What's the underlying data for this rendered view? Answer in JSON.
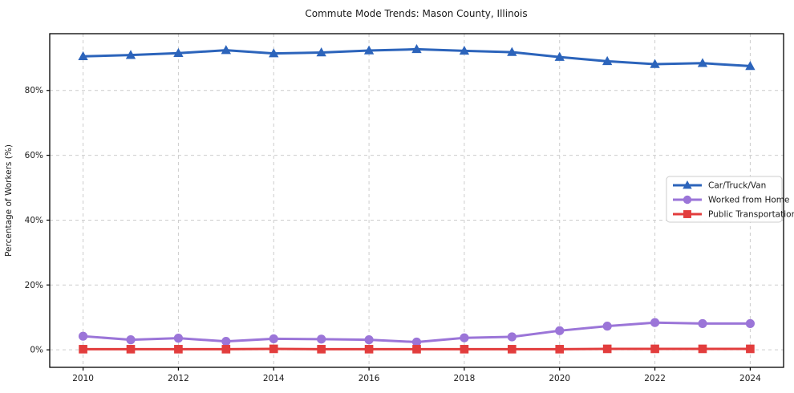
{
  "chart_data": {
    "type": "line",
    "title": "Commute Mode Trends: Mason County, Illinois",
    "xlabel": "",
    "ylabel": "Percentage of Workers (%)",
    "x": [
      2010,
      2011,
      2012,
      2013,
      2014,
      2015,
      2016,
      2017,
      2018,
      2019,
      2020,
      2021,
      2022,
      2023,
      2024
    ],
    "x_ticks": [
      2010,
      2012,
      2014,
      2016,
      2018,
      2020,
      2022,
      2024
    ],
    "y_ticks": [
      0,
      20,
      40,
      60,
      80
    ],
    "y_tick_suffix": "%",
    "xlim": [
      2009.3,
      2024.7
    ],
    "ylim": [
      -5.4,
      97.5
    ],
    "grid": true,
    "grid_style": "dashed",
    "legend_position": "center right",
    "series": [
      {
        "name": "Car/Truck/Van",
        "marker": "triangle",
        "color": "#2c64bb",
        "values": [
          90.5,
          90.9,
          91.5,
          92.4,
          91.4,
          91.7,
          92.3,
          92.7,
          92.2,
          91.8,
          90.3,
          89.0,
          88.1,
          88.4,
          87.5
        ]
      },
      {
        "name": "Worked from Home",
        "marker": "circle",
        "color": "#9b75d8",
        "values": [
          4.2,
          3.1,
          3.6,
          2.6,
          3.4,
          3.3,
          3.1,
          2.4,
          3.7,
          4.0,
          5.9,
          7.3,
          8.4,
          8.1,
          8.1
        ]
      },
      {
        "name": "Public Transportation",
        "marker": "square",
        "color": "#e23d3d",
        "values": [
          0.2,
          0.2,
          0.2,
          0.2,
          0.3,
          0.2,
          0.2,
          0.2,
          0.2,
          0.2,
          0.2,
          0.3,
          0.3,
          0.3,
          0.3
        ]
      }
    ],
    "colors": {
      "grid": "#cccccc",
      "spine": "#000000",
      "text": "#1a1a1a",
      "legend_border": "#cccccc",
      "legend_bg": "#ffffff"
    }
  }
}
